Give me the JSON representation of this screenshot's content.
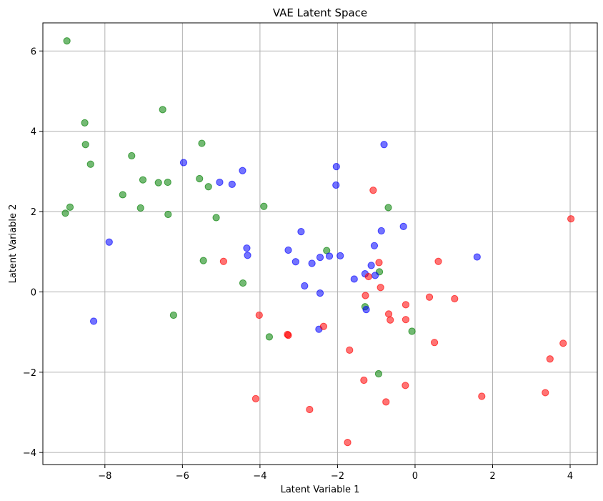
{
  "chart_data": {
    "type": "scatter",
    "title": "VAE Latent Space",
    "xlabel": "Latent Variable 1",
    "ylabel": "Latent Variable 2",
    "xlim": [
      -9.6,
      4.7
    ],
    "ylim": [
      -4.3,
      6.7
    ],
    "xticks": [
      -8,
      -6,
      -4,
      -2,
      0,
      2,
      4
    ],
    "yticks": [
      -4,
      -2,
      0,
      2,
      4,
      6
    ],
    "grid": true,
    "marker_alpha": 0.55,
    "series": [
      {
        "color": "#008000",
        "points": [
          [
            -8.98,
            6.25
          ],
          [
            -8.52,
            4.21
          ],
          [
            -8.5,
            3.67
          ],
          [
            -8.37,
            3.18
          ],
          [
            -9.02,
            1.96
          ],
          [
            -8.9,
            2.11
          ],
          [
            -7.54,
            2.42
          ],
          [
            -7.31,
            3.39
          ],
          [
            -7.08,
            2.09
          ],
          [
            -7.02,
            2.79
          ],
          [
            -6.62,
            2.72
          ],
          [
            -6.38,
            2.73
          ],
          [
            -6.37,
            1.93
          ],
          [
            -6.51,
            4.54
          ],
          [
            -6.23,
            -0.58
          ],
          [
            -5.56,
            2.82
          ],
          [
            -5.5,
            3.7
          ],
          [
            -5.33,
            2.62
          ],
          [
            -5.46,
            0.78
          ],
          [
            -5.13,
            1.85
          ],
          [
            -3.9,
            2.13
          ],
          [
            -4.44,
            0.22
          ],
          [
            -3.76,
            -1.12
          ],
          [
            -2.28,
            1.03
          ],
          [
            -1.29,
            -0.37
          ],
          [
            -0.92,
            0.5
          ],
          [
            -0.69,
            2.1
          ],
          [
            -0.94,
            -2.04
          ],
          [
            -0.08,
            -0.98
          ]
        ]
      },
      {
        "color": "#0000ff",
        "points": [
          [
            -8.29,
            -0.73
          ],
          [
            -7.89,
            1.24
          ],
          [
            -5.97,
            3.22
          ],
          [
            -5.04,
            2.73
          ],
          [
            -4.72,
            2.68
          ],
          [
            -4.45,
            3.02
          ],
          [
            -4.34,
            1.09
          ],
          [
            -4.32,
            0.91
          ],
          [
            -3.27,
            1.04
          ],
          [
            -3.08,
            0.75
          ],
          [
            -2.94,
            1.5
          ],
          [
            -2.85,
            0.15
          ],
          [
            -2.66,
            0.71
          ],
          [
            -2.45,
            0.86
          ],
          [
            -2.45,
            -0.03
          ],
          [
            -2.48,
            -0.93
          ],
          [
            -2.21,
            0.89
          ],
          [
            -2.03,
            3.12
          ],
          [
            -2.04,
            2.66
          ],
          [
            -1.93,
            0.9
          ],
          [
            -1.57,
            0.32
          ],
          [
            -1.29,
            0.45
          ],
          [
            -1.26,
            -0.44
          ],
          [
            -1.13,
            0.66
          ],
          [
            -1.05,
            1.15
          ],
          [
            -1.03,
            0.41
          ],
          [
            -0.87,
            1.52
          ],
          [
            -0.8,
            3.67
          ],
          [
            -0.3,
            1.63
          ],
          [
            1.6,
            0.87
          ]
        ]
      },
      {
        "color": "#ff0000",
        "points": [
          [
            -4.94,
            0.76
          ],
          [
            -4.02,
            -0.58
          ],
          [
            -4.11,
            -2.66
          ],
          [
            -3.29,
            -1.06
          ],
          [
            -3.27,
            -1.08
          ],
          [
            -2.72,
            -2.93
          ],
          [
            -2.36,
            -0.86
          ],
          [
            -1.74,
            -3.75
          ],
          [
            -1.69,
            -1.45
          ],
          [
            -1.32,
            -2.2
          ],
          [
            -1.28,
            -0.09
          ],
          [
            -1.2,
            0.38
          ],
          [
            -1.08,
            2.53
          ],
          [
            -0.93,
            0.73
          ],
          [
            -0.89,
            0.11
          ],
          [
            -0.75,
            -2.74
          ],
          [
            -0.68,
            -0.55
          ],
          [
            -0.64,
            -0.7
          ],
          [
            -0.24,
            -0.32
          ],
          [
            -0.24,
            -0.69
          ],
          [
            -0.25,
            -2.33
          ],
          [
            0.37,
            -0.13
          ],
          [
            0.5,
            -1.26
          ],
          [
            0.6,
            0.76
          ],
          [
            1.02,
            -0.17
          ],
          [
            1.72,
            -2.6
          ],
          [
            3.36,
            -2.51
          ],
          [
            3.48,
            -1.67
          ],
          [
            3.82,
            -1.28
          ],
          [
            4.02,
            1.82
          ]
        ]
      }
    ]
  }
}
